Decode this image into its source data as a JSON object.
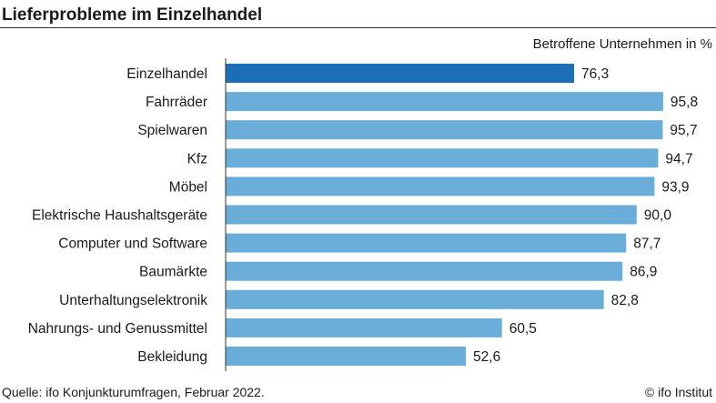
{
  "title": "Lieferprobleme im Einzelhandel",
  "unit_label": "Betroffene Unternehmen in %",
  "source": "Quelle: ifo Konjunkturumfragen, Februar 2022.",
  "credit": "© ifo Institut",
  "colors": {
    "highlight": "#1c6fb6",
    "bar": "#6badd9"
  },
  "chart_data": {
    "type": "bar",
    "orientation": "horizontal",
    "categories": [
      "Einzelhandel",
      "Fahrräder",
      "Spielwaren",
      "Kfz",
      "Möbel",
      "Elektrische Haushaltsgeräte",
      "Computer und Software",
      "Baumärkte",
      "Unterhaltungselektronik",
      "Nahrungs- und Genussmittel",
      "Bekleidung"
    ],
    "values": [
      76.3,
      95.8,
      95.7,
      94.7,
      93.9,
      90.0,
      87.7,
      86.9,
      82.8,
      60.5,
      52.6
    ],
    "labels": [
      "76,3",
      "95,8",
      "95,7",
      "94,7",
      "93,9",
      "90,0",
      "87,7",
      "86,9",
      "82,8",
      "60,5",
      "52,6"
    ],
    "highlight_index": 0,
    "xlim": [
      0,
      100
    ],
    "grid": false,
    "title": "Lieferprobleme im Einzelhandel",
    "xlabel": "Betroffene Unternehmen in %",
    "ylabel": ""
  }
}
